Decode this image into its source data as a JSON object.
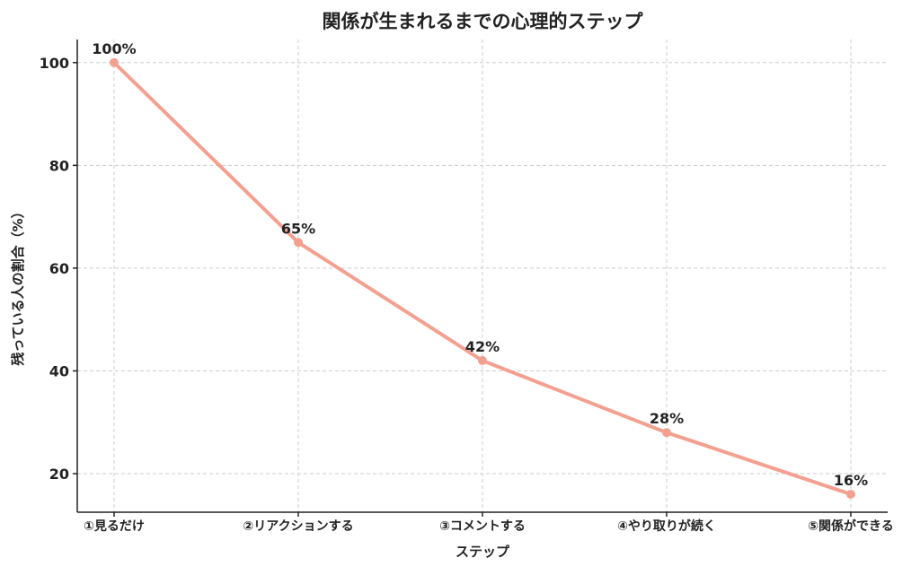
{
  "chart_data": {
    "type": "line",
    "title": "関係が生まれるまでの心理的ステップ",
    "xlabel": "ステップ",
    "ylabel": "残っている人の割合（%）",
    "categories": [
      "①見るだけ",
      "②リアクションする",
      "③コメントする",
      "④やり取りが続く",
      "⑤関係ができる"
    ],
    "series": [
      {
        "values": [
          100,
          65,
          42,
          28,
          16
        ],
        "data_labels": [
          "100%",
          "65%",
          "42%",
          "28%",
          "16%"
        ],
        "color": "#f4a090"
      }
    ],
    "ylim": [
      12.5,
      104.5
    ],
    "yticks": [
      20,
      40,
      60,
      80,
      100
    ],
    "ytick_labels": [
      "20",
      "40",
      "60",
      "80",
      "100"
    ],
    "grid": true,
    "legend": "none"
  }
}
